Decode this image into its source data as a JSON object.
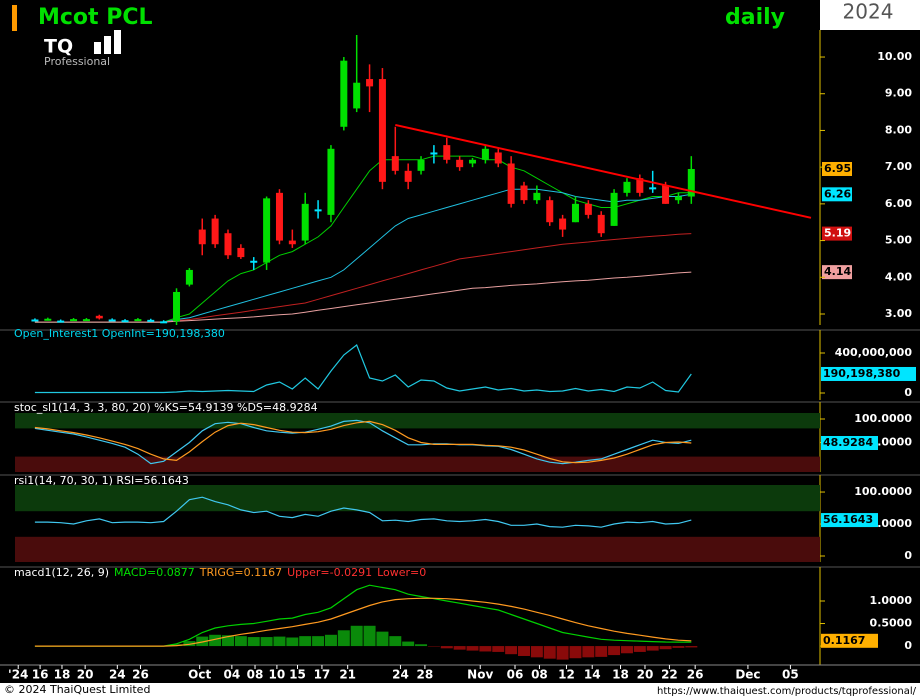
{
  "header": {
    "year": "2024",
    "logo": "TQ",
    "logo_sub": "Professional"
  },
  "footer": {
    "copyright": "© 2024 ThaiQuest Limited",
    "url": "https://www.thaiquest.com/products/tqprofessional/"
  },
  "chart_data": [
    {
      "type": "candlestick",
      "title": "Mcot PCL",
      "subtitle": "daily",
      "colors": {
        "up": "#00e000",
        "down": "#ff1818",
        "flat": "#00e5ff"
      },
      "open": [
        2.85,
        2.85,
        2.82,
        2.84,
        2.85,
        2.95,
        2.85,
        2.83,
        2.85,
        2.84,
        2.8,
        2.8,
        3.8,
        5.3,
        5.6,
        5.2,
        4.8,
        4.45,
        4.4,
        6.3,
        5.0,
        5.0,
        5.85,
        5.7,
        8.1,
        8.6,
        9.4,
        9.4,
        7.3,
        6.9,
        6.9,
        7.4,
        7.6,
        7.2,
        7.1,
        7.2,
        7.4,
        7.1,
        6.5,
        6.1,
        6.1,
        5.6,
        5.5,
        6.0,
        5.7,
        5.4,
        6.3,
        6.7,
        6.45,
        6.5,
        6.1,
        6.2
      ],
      "high": [
        2.88,
        2.9,
        2.85,
        2.89,
        2.89,
        2.98,
        2.88,
        2.86,
        2.89,
        2.87,
        2.83,
        3.7,
        4.25,
        5.6,
        5.7,
        5.3,
        4.9,
        4.55,
        6.2,
        6.4,
        5.3,
        6.3,
        6.1,
        7.6,
        10.0,
        10.6,
        9.8,
        9.7,
        8.1,
        7.1,
        7.3,
        7.6,
        7.8,
        7.3,
        7.25,
        7.6,
        7.5,
        7.3,
        6.6,
        6.5,
        6.2,
        5.7,
        6.2,
        6.1,
        5.8,
        6.4,
        6.7,
        6.8,
        6.9,
        6.6,
        6.3,
        7.3
      ],
      "low": [
        2.82,
        2.82,
        2.79,
        2.81,
        2.82,
        2.85,
        2.82,
        2.8,
        2.82,
        2.81,
        2.77,
        2.7,
        3.75,
        4.6,
        4.8,
        4.5,
        4.5,
        4.2,
        4.2,
        4.9,
        4.8,
        4.9,
        5.6,
        5.5,
        8.0,
        8.5,
        8.5,
        6.4,
        6.8,
        6.4,
        6.8,
        7.1,
        7.1,
        6.9,
        7.0,
        7.1,
        7.0,
        5.9,
        6.0,
        6.0,
        5.4,
        5.1,
        5.5,
        5.6,
        5.1,
        5.4,
        6.2,
        6.2,
        6.3,
        6.0,
        6.0,
        6.0
      ],
      "close": [
        2.85,
        2.87,
        2.82,
        2.86,
        2.86,
        2.88,
        2.85,
        2.83,
        2.86,
        2.84,
        2.8,
        3.6,
        4.2,
        4.9,
        4.9,
        4.6,
        4.55,
        4.45,
        6.15,
        5.0,
        4.9,
        6.0,
        5.85,
        7.5,
        9.9,
        9.3,
        9.2,
        6.6,
        6.9,
        6.6,
        7.2,
        7.4,
        7.2,
        7.0,
        7.2,
        7.5,
        7.1,
        6.0,
        6.1,
        6.3,
        5.5,
        5.3,
        6.0,
        5.7,
        5.2,
        6.3,
        6.6,
        6.3,
        6.45,
        6.0,
        6.2,
        6.95
      ],
      "overlays": [
        {
          "color": "#00d000",
          "values": [
            2.78,
            2.78,
            2.78,
            2.78,
            2.78,
            2.78,
            2.78,
            2.78,
            2.78,
            2.78,
            2.78,
            2.9,
            3.0,
            3.3,
            3.6,
            3.9,
            4.1,
            4.2,
            4.4,
            4.6,
            4.7,
            4.9,
            5.1,
            5.4,
            5.9,
            6.4,
            6.9,
            7.2,
            7.2,
            7.2,
            7.2,
            7.3,
            7.3,
            7.3,
            7.3,
            7.2,
            7.2,
            7.0,
            6.9,
            6.7,
            6.5,
            6.3,
            6.1,
            6.0,
            5.9,
            5.9,
            6.0,
            6.1,
            6.2,
            6.2,
            6.3,
            6.3
          ]
        },
        {
          "color": "#20c0e0",
          "values": [
            2.78,
            2.78,
            2.78,
            2.78,
            2.78,
            2.78,
            2.78,
            2.78,
            2.78,
            2.78,
            2.78,
            2.85,
            2.9,
            3.0,
            3.1,
            3.2,
            3.3,
            3.4,
            3.5,
            3.6,
            3.7,
            3.8,
            3.9,
            4.0,
            4.2,
            4.5,
            4.8,
            5.1,
            5.4,
            5.6,
            5.7,
            5.8,
            5.9,
            6.0,
            6.1,
            6.2,
            6.3,
            6.4,
            6.4,
            6.4,
            6.35,
            6.3,
            6.2,
            6.15,
            6.1,
            6.05,
            6.1,
            6.1,
            6.15,
            6.2,
            6.2,
            6.26
          ]
        },
        {
          "color": "#c02020",
          "values": [
            2.78,
            2.78,
            2.78,
            2.78,
            2.78,
            2.78,
            2.78,
            2.78,
            2.78,
            2.78,
            2.78,
            2.82,
            2.85,
            2.9,
            2.95,
            3.0,
            3.05,
            3.1,
            3.15,
            3.2,
            3.25,
            3.3,
            3.4,
            3.5,
            3.6,
            3.7,
            3.8,
            3.9,
            4.0,
            4.1,
            4.2,
            4.3,
            4.4,
            4.5,
            4.55,
            4.6,
            4.65,
            4.7,
            4.75,
            4.8,
            4.85,
            4.9,
            4.93,
            4.96,
            5.0,
            5.03,
            5.06,
            5.09,
            5.12,
            5.14,
            5.17,
            5.19
          ]
        },
        {
          "color": "#e8a0a0",
          "values": [
            2.78,
            2.78,
            2.78,
            2.78,
            2.78,
            2.78,
            2.78,
            2.78,
            2.78,
            2.78,
            2.78,
            2.8,
            2.82,
            2.84,
            2.86,
            2.88,
            2.9,
            2.92,
            2.95,
            2.98,
            3.0,
            3.05,
            3.1,
            3.15,
            3.2,
            3.25,
            3.3,
            3.35,
            3.4,
            3.45,
            3.5,
            3.55,
            3.6,
            3.65,
            3.7,
            3.72,
            3.75,
            3.78,
            3.8,
            3.82,
            3.85,
            3.88,
            3.9,
            3.92,
            3.95,
            3.98,
            4.0,
            4.03,
            4.06,
            4.09,
            4.12,
            4.14
          ]
        }
      ],
      "trendline": {
        "color": "#ff0000",
        "x": [
          28,
          60.3
        ],
        "values": [
          8.15,
          5.62
        ]
      },
      "price_tags": [
        {
          "value": 6.95,
          "color": "#ffb000",
          "text_color": "#000000"
        },
        {
          "value": 6.26,
          "color": "#00e5ff",
          "text_color": "#000000"
        },
        {
          "value": 5.19,
          "color": "#d01010",
          "text_color": "#ffffff"
        },
        {
          "value": 4.14,
          "color": "#f0a0a0",
          "text_color": "#000000"
        }
      ],
      "ylim": [
        2.7,
        10.6
      ],
      "yticks": [
        {
          "value": 3,
          "label": "3.00"
        },
        {
          "value": 4,
          "label": "4.00"
        },
        {
          "value": 5,
          "label": "5.00"
        },
        {
          "value": 6,
          "label": "6.00"
        },
        {
          "value": 7,
          "label": "7.00"
        },
        {
          "value": 8,
          "label": "8.00"
        },
        {
          "value": 9,
          "label": "9.00"
        },
        {
          "value": 10,
          "label": "10.00"
        }
      ],
      "xlim": [
        -1.55,
        61
      ],
      "xticks": [
        {
          "value": -1.3,
          "label": "'24"
        },
        {
          "value": 0.4,
          "label": "16"
        },
        {
          "value": 2.1,
          "label": "18"
        },
        {
          "value": 3.9,
          "label": "20"
        },
        {
          "value": 6.4,
          "label": "24"
        },
        {
          "value": 8.2,
          "label": "26"
        },
        {
          "value": 12.8,
          "label": "Oct"
        },
        {
          "value": 15.3,
          "label": "04"
        },
        {
          "value": 17.1,
          "label": "08"
        },
        {
          "value": 18.8,
          "label": "10"
        },
        {
          "value": 20.4,
          "label": "15"
        },
        {
          "value": 22.3,
          "label": "17"
        },
        {
          "value": 24.3,
          "label": "21"
        },
        {
          "value": 28.4,
          "label": "24"
        },
        {
          "value": 30.3,
          "label": "28"
        },
        {
          "value": 34.6,
          "label": "Nov"
        },
        {
          "value": 37.3,
          "label": "06"
        },
        {
          "value": 39.2,
          "label": "08"
        },
        {
          "value": 41.3,
          "label": "12"
        },
        {
          "value": 43.3,
          "label": "14"
        },
        {
          "value": 45.5,
          "label": "18"
        },
        {
          "value": 47.4,
          "label": "20"
        },
        {
          "value": 49.3,
          "label": "22"
        },
        {
          "value": 51.3,
          "label": "26"
        },
        {
          "value": 55.4,
          "label": "Dec"
        },
        {
          "value": 58.7,
          "label": "05"
        }
      ]
    },
    {
      "type": "line",
      "title": "Open_Interest1 OpenInt=190,198,380",
      "title_color": "#00d8f0",
      "series": [
        {
          "color": "#20c8e0",
          "values": [
            5000000,
            5000000,
            5000000,
            5000000,
            5000000,
            5000000,
            5000000,
            5000000,
            5000000,
            5000000,
            5000000,
            10000000,
            20000000,
            15000000,
            20000000,
            25000000,
            20000000,
            15000000,
            80000000,
            110000000,
            40000000,
            150000000,
            40000000,
            220000000,
            380000000,
            480000000,
            150000000,
            120000000,
            180000000,
            60000000,
            130000000,
            120000000,
            50000000,
            20000000,
            40000000,
            60000000,
            30000000,
            45000000,
            20000000,
            30000000,
            15000000,
            20000000,
            45000000,
            20000000,
            35000000,
            15000000,
            60000000,
            50000000,
            110000000,
            25000000,
            10000000,
            190198380
          ]
        }
      ],
      "tag": {
        "value": 190198380,
        "label": "190,198,380",
        "color": "#00e5ff"
      },
      "ylim": [
        -70000000,
        520000000
      ],
      "yticks": [
        0,
        {
          "value": 400000000,
          "label": "400,000,000"
        }
      ]
    },
    {
      "type": "line",
      "title": "stoc_sl1(14, 3, 3, 80, 20) %KS=54.9139 %DS=48.9284",
      "title_color": "#ffffff",
      "zones": [
        20,
        80
      ],
      "zone_colors": [
        "#4a0c0c",
        "#0c3a0c"
      ],
      "series": [
        {
          "color": "#40c8f0",
          "values": [
            80,
            76,
            72,
            68,
            62,
            55,
            48,
            40,
            25,
            5,
            10,
            30,
            50,
            75,
            90,
            93,
            90,
            82,
            75,
            72,
            70,
            72,
            78,
            85,
            95,
            97,
            92,
            75,
            60,
            45,
            45,
            47,
            47,
            45,
            45,
            43,
            42,
            35,
            25,
            15,
            8,
            5,
            8,
            12,
            15,
            25,
            35,
            45,
            55,
            50,
            48,
            54.9139
          ]
        },
        {
          "color": "#ff9a20",
          "values": [
            82,
            79,
            75,
            71,
            66,
            60,
            53,
            46,
            37,
            25,
            15,
            12,
            30,
            52,
            72,
            86,
            91,
            88,
            82,
            76,
            72,
            71,
            73,
            78,
            86,
            92,
            95,
            88,
            76,
            60,
            50,
            46,
            46,
            46,
            46,
            44,
            43,
            40,
            34,
            25,
            16,
            9,
            7,
            8,
            12,
            17,
            25,
            35,
            45,
            50,
            51,
            48.9284
          ]
        }
      ],
      "tag": 48.9284,
      "tag_color": "#00e5ff",
      "ylim": [
        -12.8,
        112.8
      ],
      "yticks": [
        {
          "value": 100,
          "label": "100.0000"
        },
        {
          "value": 50,
          "label": "50.0000"
        }
      ]
    },
    {
      "type": "line",
      "title": "rsi1(14, 70, 30, 1) RSI=56.1643",
      "title_color": "#ffffff",
      "zones": [
        30,
        70
      ],
      "zone_colors": [
        "#4a0c0c",
        "#0c3a0c"
      ],
      "series": [
        {
          "color": "#40c8f0",
          "values": [
            53,
            53,
            52,
            50,
            55,
            58,
            52,
            53,
            53,
            52,
            54,
            70,
            88,
            92,
            85,
            80,
            72,
            68,
            70,
            62,
            60,
            65,
            62,
            70,
            75,
            72,
            68,
            55,
            56,
            54,
            57,
            58,
            55,
            54,
            55,
            57,
            54,
            48,
            48,
            50,
            46,
            45,
            48,
            47,
            45,
            50,
            53,
            52,
            54,
            50,
            51,
            56.1643
          ]
        }
      ],
      "tag": 56.1643,
      "tag_color": "#00e5ff",
      "ylim": [
        -9.4,
        111
      ],
      "yticks": [
        {
          "value": 100,
          "label": "100.0000"
        },
        {
          "value": 50,
          "label": "50.0000"
        },
        0
      ]
    },
    {
      "type": "combo",
      "title_parts": [
        {
          "text": "macd1(12, 26, 9)",
          "color": "#ffffff"
        },
        {
          "text": "MACD=0.0877",
          "color": "#00e000"
        },
        {
          "text": "TRIGG=0.1167",
          "color": "#ff9a20"
        },
        {
          "text": "Upper=-0.0291",
          "color": "#ff3030"
        },
        {
          "text": "Lower=0",
          "color": "#ff3030"
        }
      ],
      "histogram": {
        "pos_color": "#0a8a0a",
        "neg_color": "#8a0a0a",
        "values": [
          0,
          0,
          0,
          0,
          0,
          0,
          0,
          0,
          0,
          0,
          0,
          0.04,
          0.11,
          0.21,
          0.25,
          0.24,
          0.22,
          0.2,
          0.2,
          0.21,
          0.19,
          0.22,
          0.22,
          0.25,
          0.35,
          0.45,
          0.45,
          0.32,
          0.22,
          0.1,
          0.04,
          -0.01,
          -0.05,
          -0.08,
          -0.1,
          -0.12,
          -0.13,
          -0.18,
          -0.22,
          -0.25,
          -0.28,
          -0.3,
          -0.27,
          -0.25,
          -0.24,
          -0.2,
          -0.16,
          -0.13,
          -0.1,
          -0.07,
          -0.04,
          -0.03
        ]
      },
      "series": [
        {
          "color": "#00d000",
          "values": [
            0,
            0,
            0,
            0,
            0,
            0,
            0,
            0,
            0,
            0,
            0,
            0.05,
            0.15,
            0.3,
            0.4,
            0.45,
            0.48,
            0.5,
            0.55,
            0.6,
            0.62,
            0.7,
            0.75,
            0.85,
            1.05,
            1.25,
            1.35,
            1.3,
            1.25,
            1.15,
            1.1,
            1.05,
            1.0,
            0.95,
            0.9,
            0.85,
            0.8,
            0.7,
            0.6,
            0.5,
            0.4,
            0.3,
            0.25,
            0.2,
            0.15,
            0.13,
            0.12,
            0.11,
            0.1,
            0.09,
            0.088,
            0.0877
          ]
        },
        {
          "color": "#ff9a20",
          "values": [
            0,
            0,
            0,
            0,
            0,
            0,
            0,
            0,
            0,
            0,
            0,
            0.01,
            0.04,
            0.09,
            0.15,
            0.21,
            0.26,
            0.3,
            0.35,
            0.39,
            0.43,
            0.48,
            0.53,
            0.6,
            0.7,
            0.8,
            0.9,
            0.98,
            1.03,
            1.05,
            1.06,
            1.06,
            1.05,
            1.03,
            1.0,
            0.97,
            0.93,
            0.88,
            0.82,
            0.75,
            0.68,
            0.6,
            0.52,
            0.45,
            0.39,
            0.33,
            0.28,
            0.24,
            0.2,
            0.16,
            0.13,
            0.1167
          ]
        }
      ],
      "tag": 0.1167,
      "tag_color": "#ffb000",
      "ylim": [
        -0.42,
        1.51
      ],
      "yticks": [
        0,
        {
          "value": 0.5,
          "label": "0.5000"
        },
        {
          "value": 1,
          "label": "1.0000"
        }
      ]
    }
  ]
}
